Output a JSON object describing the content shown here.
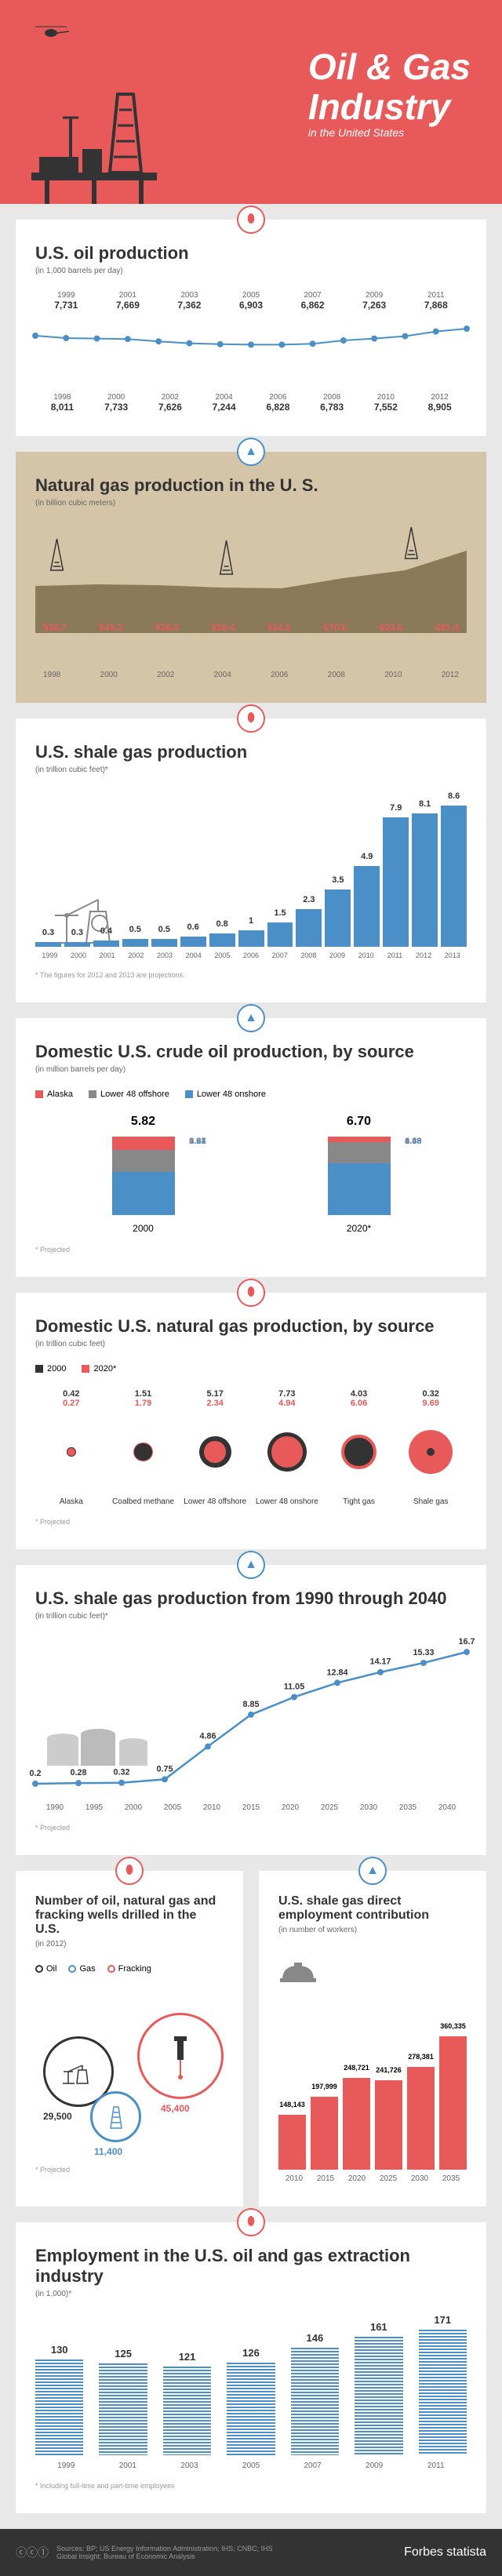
{
  "header": {
    "title1": "Oil & Gas",
    "title2": "Industry",
    "subtitle": "in the United States"
  },
  "colors": {
    "red": "#e85a5a",
    "blue": "#4a8fc7",
    "tan": "#c9b898",
    "gray": "#888888",
    "dark": "#333333"
  },
  "oil_production": {
    "title": "U.S. oil production",
    "subtitle": "(in 1,000 barrels per day)",
    "top_years": [
      "1999",
      "2001",
      "2003",
      "2005",
      "2007",
      "2009",
      "2011"
    ],
    "top_vals": [
      "7,731",
      "7,669",
      "7,362",
      "6,903",
      "6,862",
      "7,263",
      "7,868"
    ],
    "bot_years": [
      "1998",
      "2000",
      "2002",
      "2004",
      "2006",
      "2008",
      "2010",
      "2012"
    ],
    "bot_vals": [
      "8,011",
      "7,733",
      "7,626",
      "7,244",
      "6,828",
      "6,783",
      "7,552",
      "8,905"
    ],
    "norm": [
      0.8,
      0.75,
      0.74,
      0.73,
      0.68,
      0.64,
      0.62,
      0.61,
      0.61,
      0.63,
      0.7,
      0.74,
      0.79,
      0.89,
      0.95
    ]
  },
  "natgas": {
    "title": "Natural gas production in the U. S.",
    "subtitle": "(in billion cubic meters)",
    "vals": [
      "538.7",
      "543.2",
      "536.0",
      "526.4",
      "524.0",
      "570.8",
      "603.6",
      "681.4"
    ],
    "years": [
      "1998",
      "2000",
      "2002",
      "2004",
      "2006",
      "2008",
      "2010",
      "2012"
    ]
  },
  "shale": {
    "title": "U.S. shale gas production",
    "subtitle": "(in trillion cubic feet)*",
    "vals": [
      0.3,
      0.3,
      0.4,
      0.5,
      0.5,
      0.6,
      0.8,
      1.0,
      1.5,
      2.3,
      3.5,
      4.9,
      7.9,
      8.1,
      8.6
    ],
    "years": [
      "1999",
      "2000",
      "2001",
      "2002",
      "2003",
      "2004",
      "2005",
      "2006",
      "2007",
      "2008",
      "2009",
      "2010",
      "2011",
      "2012",
      "2013"
    ],
    "footnote": "* The figures for 2012 and 2013 are projections."
  },
  "crude": {
    "title": "Domestic U.S. crude oil production, by source",
    "subtitle": "(in million barrels per day)",
    "legend": [
      "Alaska",
      "Lower 48 offshore",
      "Lower 48 onshore"
    ],
    "legend_colors": [
      "#e85a5a",
      "#888888",
      "#4a8fc7"
    ],
    "years": [
      "2000",
      "2020*"
    ],
    "totals": [
      "5.82",
      "6.70"
    ],
    "seg2000": {
      "alaska": "0.97",
      "offshore": "1.61",
      "onshore": "3.24"
    },
    "seg2020": {
      "alaska": "0.49",
      "offshore": "1.83",
      "onshore": "4.38"
    },
    "projected": "* Projected"
  },
  "natgas_source": {
    "title": "Domestic U.S. natural gas production, by source",
    "subtitle": "(in trillion cubic feet)",
    "legend": [
      "2000",
      "2020*"
    ],
    "legend_colors": [
      "#333333",
      "#e85a5a"
    ],
    "cats": [
      "Alaska",
      "Coalbed methane",
      "Lower 48 offshore",
      "Lower 48 onshore",
      "Tight gas",
      "Shale gas"
    ],
    "v2000": [
      "0.42",
      "1.51",
      "5.17",
      "7.73",
      "4.03",
      "0.32"
    ],
    "v2020": [
      "0.27",
      "1.79",
      "2.34",
      "4.94",
      "6.06",
      "9.69"
    ],
    "projected": "* Projected"
  },
  "shale_proj": {
    "title": "U.S. shale gas production from 1990 through 2040",
    "subtitle": "(in trillion cubic feet)*",
    "years": [
      "1990",
      "1995",
      "2000",
      "2005",
      "2010",
      "2015",
      "2020",
      "2025",
      "2030",
      "2035",
      "2040"
    ],
    "vals": [
      0.2,
      0.28,
      0.32,
      0.75,
      4.86,
      8.85,
      11.05,
      12.84,
      14.17,
      15.33,
      16.7
    ],
    "projected": "* Projected"
  },
  "wells": {
    "title": "Number of oil, natural gas and fracking wells drilled in the U.S.",
    "subtitle": "(in 2012)",
    "legend": [
      "Oil",
      "Gas",
      "Fracking"
    ],
    "legend_colors": [
      "#333333",
      "#4a8fc7",
      "#e85a5a"
    ],
    "oil": "29,500",
    "gas": "11,400",
    "fracking": "45,400",
    "projected": "* Projected"
  },
  "employment": {
    "title": "U.S. shale gas direct employment contribution",
    "subtitle": "(in number of workers)",
    "years": [
      "2010",
      "2015",
      "2020",
      "2025",
      "2030",
      "2035"
    ],
    "vals": [
      148143,
      197999,
      248721,
      241726,
      278381,
      360335
    ],
    "labels": [
      "148,143",
      "197,999",
      "248,721",
      "241,726",
      "278,381",
      "360,335"
    ]
  },
  "extraction": {
    "title": "Employment in the U.S. oil and gas extraction industry",
    "subtitle": "(in 1,000)*",
    "years": [
      "1999",
      "2001",
      "2003",
      "2005",
      "2007",
      "2009",
      "2011"
    ],
    "vals": [
      130,
      125,
      121,
      126,
      146,
      161,
      171
    ],
    "footnote": "* Including full-time and part-time employees"
  },
  "footer": {
    "sources": "Sources: BP; US Energy Information Administration; IHS; CNBC; IHS Global Insight; Bureau of Economic Analysis",
    "logos": "Forbes   statista"
  }
}
